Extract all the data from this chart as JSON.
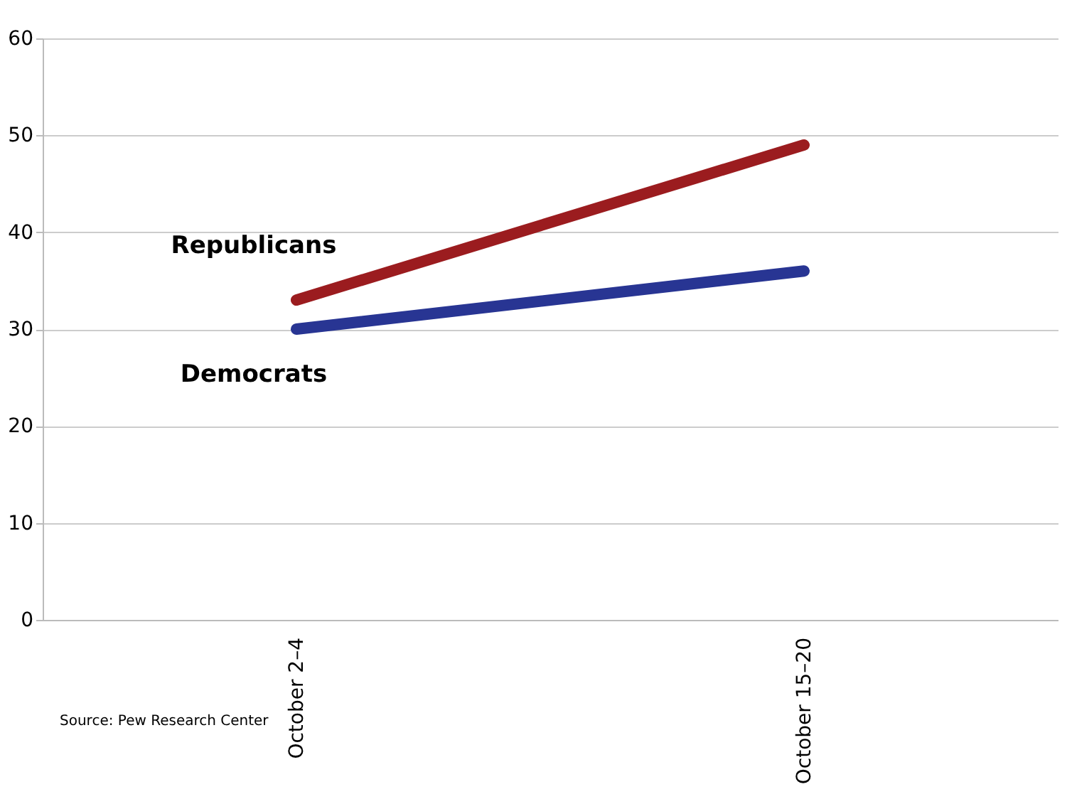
{
  "chart_data": {
    "type": "line",
    "categories": [
      "October 2–4",
      "October 15–20"
    ],
    "series": [
      {
        "name": "Republicans",
        "color": "#9b1c1f",
        "values": [
          33,
          49
        ]
      },
      {
        "name": "Democrats",
        "color": "#283593",
        "values": [
          30,
          36
        ]
      }
    ],
    "ylim": [
      0,
      60
    ],
    "yticks": [
      0,
      10,
      20,
      30,
      40,
      50,
      60
    ],
    "grid": "y",
    "annotations": [
      "Source: Pew Research Center"
    ]
  }
}
